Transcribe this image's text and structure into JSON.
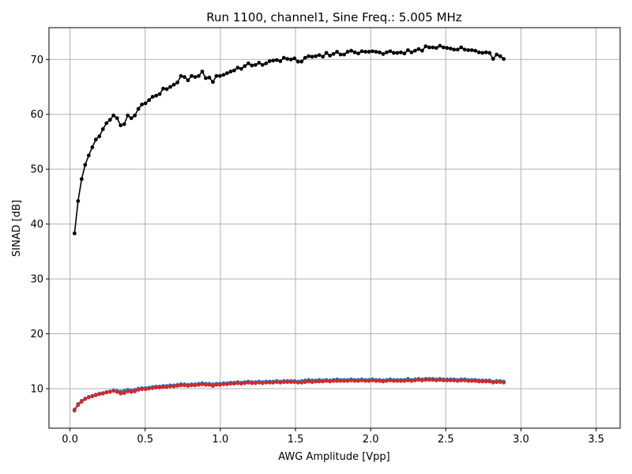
{
  "chart_data": {
    "type": "line",
    "title": "Run 1100, channel1, Sine Freq.: 5.005 MHz",
    "xlabel": "AWG Amplitude [Vpp]",
    "ylabel": "SINAD [dB]",
    "xlim": [
      -0.14,
      3.66
    ],
    "ylim": [
      2.8,
      75.8
    ],
    "xticks": [
      0.0,
      0.5,
      1.0,
      1.5,
      2.0,
      2.5,
      3.0,
      3.5
    ],
    "xtick_labels": [
      "0.0",
      "0.5",
      "1.0",
      "1.5",
      "2.0",
      "2.5",
      "3.0",
      "3.5"
    ],
    "yticks": [
      10,
      20,
      30,
      40,
      50,
      60,
      70
    ],
    "ytick_labels": [
      "10",
      "20",
      "30",
      "40",
      "50",
      "60",
      "70"
    ],
    "grid": true,
    "colors": {
      "black": "#000000",
      "blue": "#1f77b4",
      "red": "#d62728",
      "grid": "#b0b0b0"
    },
    "x_start": 0.03,
    "x_step": 0.0236,
    "series": [
      {
        "color": "#000000",
        "values": [
          38.3,
          44.2,
          48.2,
          50.8,
          52.5,
          54.0,
          55.4,
          56.0,
          57.3,
          58.4,
          59.0,
          59.8,
          59.3,
          58.0,
          58.2,
          59.8,
          59.3,
          59.8,
          61.0,
          61.8,
          62.0,
          62.6,
          63.2,
          63.4,
          63.7,
          64.7,
          64.6,
          65.0,
          65.4,
          65.8,
          67.0,
          66.8,
          66.2,
          67.0,
          66.8,
          67.0,
          67.8,
          66.6,
          66.7,
          65.9,
          67.0,
          67.0,
          67.2,
          67.5,
          67.8,
          68.0,
          68.5,
          68.3,
          68.8,
          69.3,
          68.9,
          69.0,
          69.4,
          69.0,
          69.3,
          69.7,
          69.8,
          69.9,
          69.7,
          70.3,
          70.1,
          70.0,
          70.2,
          69.6,
          69.6,
          70.3,
          70.6,
          70.5,
          70.6,
          70.8,
          70.5,
          71.2,
          70.7,
          71.0,
          71.4,
          70.9,
          70.9,
          71.4,
          71.6,
          71.3,
          71.1,
          71.5,
          71.4,
          71.4,
          71.5,
          71.4,
          71.3,
          71.0,
          71.3,
          71.5,
          71.2,
          71.2,
          71.3,
          71.1,
          71.7,
          71.3,
          71.6,
          71.9,
          71.6,
          72.4,
          72.2,
          72.2,
          72.1,
          72.5,
          72.2,
          72.1,
          72.0,
          71.8,
          71.8,
          72.2,
          71.8,
          71.7,
          71.7,
          71.6,
          71.3,
          71.2,
          71.3,
          71.2,
          70.1,
          70.9,
          70.6,
          70.1
        ]
      },
      {
        "color": "#1f77b4",
        "values": [
          6.2,
          7.2,
          7.8,
          8.2,
          8.5,
          8.7,
          8.9,
          9.1,
          9.2,
          9.4,
          9.5,
          9.7,
          9.6,
          9.5,
          9.6,
          9.8,
          9.7,
          9.8,
          10.0,
          10.1,
          10.1,
          10.2,
          10.3,
          10.4,
          10.4,
          10.5,
          10.5,
          10.6,
          10.6,
          10.7,
          10.8,
          10.8,
          10.7,
          10.8,
          10.8,
          10.9,
          11.0,
          10.9,
          10.9,
          10.8,
          10.9,
          10.9,
          11.0,
          11.0,
          11.1,
          11.1,
          11.2,
          11.1,
          11.2,
          11.3,
          11.2,
          11.2,
          11.3,
          11.2,
          11.3,
          11.3,
          11.3,
          11.4,
          11.3,
          11.4,
          11.4,
          11.4,
          11.4,
          11.3,
          11.4,
          11.5,
          11.6,
          11.5,
          11.5,
          11.6,
          11.5,
          11.6,
          11.5,
          11.6,
          11.7,
          11.6,
          11.6,
          11.6,
          11.7,
          11.6,
          11.6,
          11.7,
          11.6,
          11.6,
          11.7,
          11.6,
          11.6,
          11.5,
          11.6,
          11.7,
          11.6,
          11.6,
          11.6,
          11.6,
          11.8,
          11.6,
          11.7,
          11.8,
          11.7,
          11.8,
          11.8,
          11.8,
          11.7,
          11.8,
          11.7,
          11.7,
          11.7,
          11.7,
          11.6,
          11.7,
          11.7,
          11.6,
          11.6,
          11.6,
          11.5,
          11.5,
          11.5,
          11.5,
          11.3,
          11.4,
          11.4,
          11.3
        ]
      },
      {
        "color": "#d62728",
        "values": [
          6.0,
          7.0,
          7.6,
          8.1,
          8.4,
          8.6,
          8.8,
          9.0,
          9.1,
          9.3,
          9.4,
          9.6,
          9.4,
          9.1,
          9.2,
          9.5,
          9.4,
          9.5,
          9.8,
          9.9,
          9.9,
          10.0,
          10.1,
          10.2,
          10.2,
          10.3,
          10.3,
          10.4,
          10.4,
          10.5,
          10.6,
          10.6,
          10.5,
          10.6,
          10.6,
          10.7,
          10.8,
          10.7,
          10.7,
          10.5,
          10.7,
          10.7,
          10.8,
          10.8,
          10.9,
          10.9,
          11.0,
          10.9,
          11.0,
          11.1,
          11.0,
          11.0,
          11.1,
          11.0,
          11.1,
          11.1,
          11.1,
          11.2,
          11.1,
          11.2,
          11.2,
          11.2,
          11.2,
          11.1,
          11.1,
          11.2,
          11.3,
          11.2,
          11.3,
          11.3,
          11.3,
          11.4,
          11.3,
          11.4,
          11.4,
          11.4,
          11.4,
          11.4,
          11.5,
          11.4,
          11.4,
          11.5,
          11.4,
          11.4,
          11.5,
          11.4,
          11.4,
          11.3,
          11.4,
          11.5,
          11.4,
          11.4,
          11.4,
          11.4,
          11.5,
          11.4,
          11.5,
          11.6,
          11.5,
          11.6,
          11.6,
          11.6,
          11.5,
          11.6,
          11.5,
          11.5,
          11.5,
          11.5,
          11.4,
          11.5,
          11.5,
          11.4,
          11.4,
          11.4,
          11.3,
          11.3,
          11.3,
          11.3,
          11.1,
          11.2,
          11.2,
          11.1
        ]
      }
    ]
  }
}
